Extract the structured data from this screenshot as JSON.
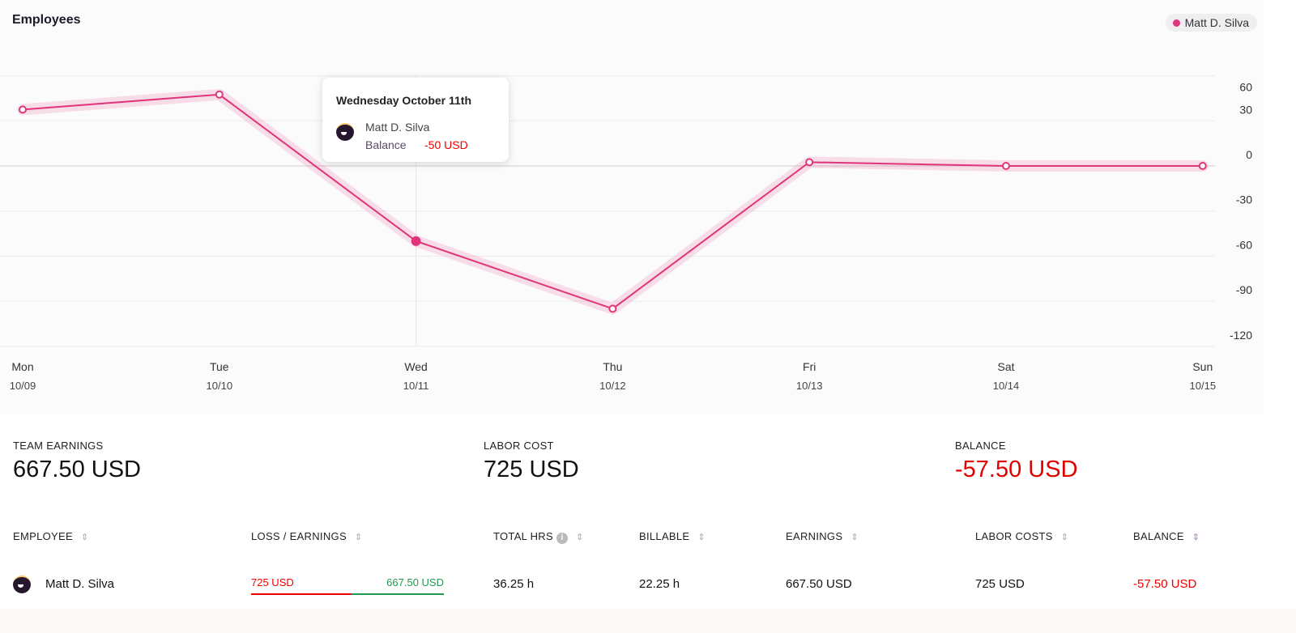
{
  "chart_data": {
    "type": "line",
    "title": "Employees",
    "categories": [
      "Mon",
      "Tue",
      "Wed",
      "Thu",
      "Fri",
      "Sat",
      "Sun"
    ],
    "dates": [
      "10/09",
      "10/10",
      "10/11",
      "10/12",
      "10/13",
      "10/14",
      "10/15"
    ],
    "series": [
      {
        "name": "Matt D. Silva",
        "values": [
          37.5,
          47.5,
          -50,
          -95,
          2.5,
          0,
          0
        ]
      }
    ],
    "yticks": [
      60,
      30,
      0,
      -30,
      -60,
      -90,
      -120
    ],
    "ylim": [
      -120,
      60
    ],
    "grid": true,
    "legend_placement": "top-right",
    "color": "#e0357a",
    "highlighted_index": 2
  },
  "tooltip": {
    "title": "Wednesday October 11th",
    "name": "Matt D. Silva",
    "label": "Balance",
    "value": "-50 USD"
  },
  "summary": [
    {
      "label": "TEAM EARNINGS",
      "value": "667.50 USD"
    },
    {
      "label": "LABOR COST",
      "value": "725 USD"
    },
    {
      "label": "BALANCE",
      "value": "-57.50 USD",
      "color": "#e00000"
    }
  ],
  "table": {
    "headers": [
      "EMPLOYEE",
      "LOSS / EARNINGS",
      "TOTAL HRS",
      "BILLABLE",
      "EARNINGS",
      "LABOR COSTS",
      "BALANCE"
    ],
    "rows": [
      {
        "employee": "Matt D. Silva",
        "loss": "725 USD",
        "earnings_bar": "667.50 USD",
        "loss_fraction": 0.52,
        "total_hrs": "36.25 h",
        "billable": "22.25 h",
        "earnings": "667.50 USD",
        "labor_costs": "725 USD",
        "balance": "-57.50 USD"
      }
    ]
  }
}
